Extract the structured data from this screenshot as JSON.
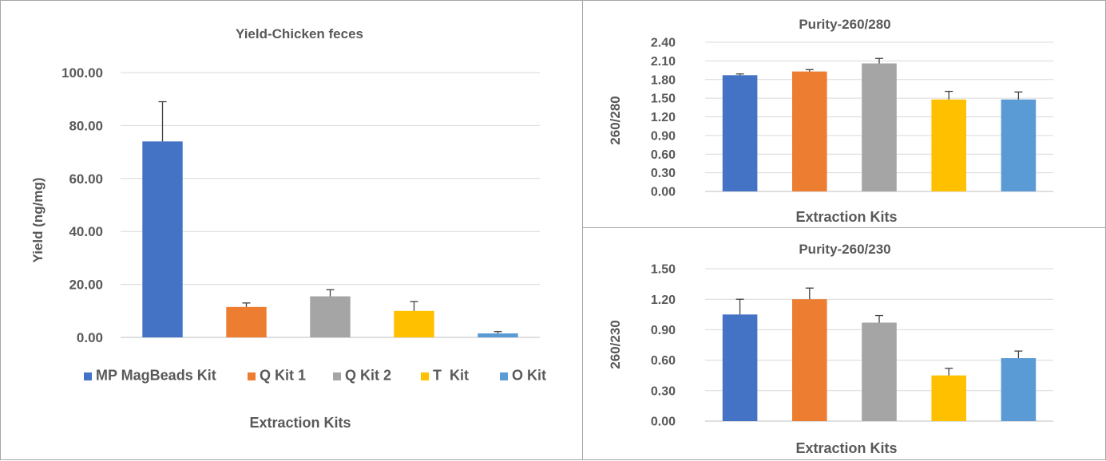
{
  "chart_data": [
    {
      "type": "bar",
      "title": "Yield-Chicken feces",
      "xlabel": "Extraction Kits",
      "ylabel": "Yield (ng/mg)",
      "ylim": [
        0,
        100
      ],
      "yticks": [
        "0.00",
        "20.00",
        "40.00",
        "60.00",
        "80.00",
        "100.00"
      ],
      "categories": [
        "MP MagBeads Kit",
        "Q Kit 1",
        "Q Kit 2",
        "T  Kit",
        "O Kit"
      ],
      "values": [
        74.0,
        11.5,
        15.5,
        10.0,
        1.5
      ],
      "errors": [
        15.0,
        1.5,
        2.5,
        3.5,
        0.7
      ],
      "colors": [
        "#4472C4",
        "#ED7D31",
        "#A5A5A5",
        "#FFC000",
        "#5B9BD5"
      ],
      "legend": "bottom",
      "grid": true
    },
    {
      "type": "bar",
      "title": "Purity-260/280",
      "xlabel": "Extraction Kits",
      "ylabel": "260/280",
      "ylim": [
        0,
        2.4
      ],
      "yticks": [
        "0.00",
        "0.30",
        "0.60",
        "0.90",
        "1.20",
        "1.50",
        "1.80",
        "2.10",
        "2.40"
      ],
      "categories": [
        "MP MagBeads Kit",
        "Q Kit 1",
        "Q Kit 2",
        "T  Kit",
        "O Kit"
      ],
      "values": [
        1.87,
        1.93,
        2.06,
        1.48,
        1.48
      ],
      "errors": [
        0.02,
        0.03,
        0.08,
        0.13,
        0.12
      ],
      "colors": [
        "#4472C4",
        "#ED7D31",
        "#A5A5A5",
        "#FFC000",
        "#5B9BD5"
      ],
      "grid": true
    },
    {
      "type": "bar",
      "title": "Purity-260/230",
      "xlabel": "Extraction Kits",
      "ylabel": "260/230",
      "ylim": [
        0,
        1.5
      ],
      "yticks": [
        "0.00",
        "0.30",
        "0.60",
        "0.90",
        "1.20",
        "1.50"
      ],
      "categories": [
        "MP MagBeads Kit",
        "Q Kit 1",
        "Q Kit 2",
        "T  Kit",
        "O Kit"
      ],
      "values": [
        1.05,
        1.2,
        0.97,
        0.45,
        0.62
      ],
      "errors": [
        0.15,
        0.11,
        0.07,
        0.07,
        0.07
      ],
      "colors": [
        "#4472C4",
        "#ED7D31",
        "#A5A5A5",
        "#FFC000",
        "#5B9BD5"
      ],
      "grid": true
    }
  ]
}
